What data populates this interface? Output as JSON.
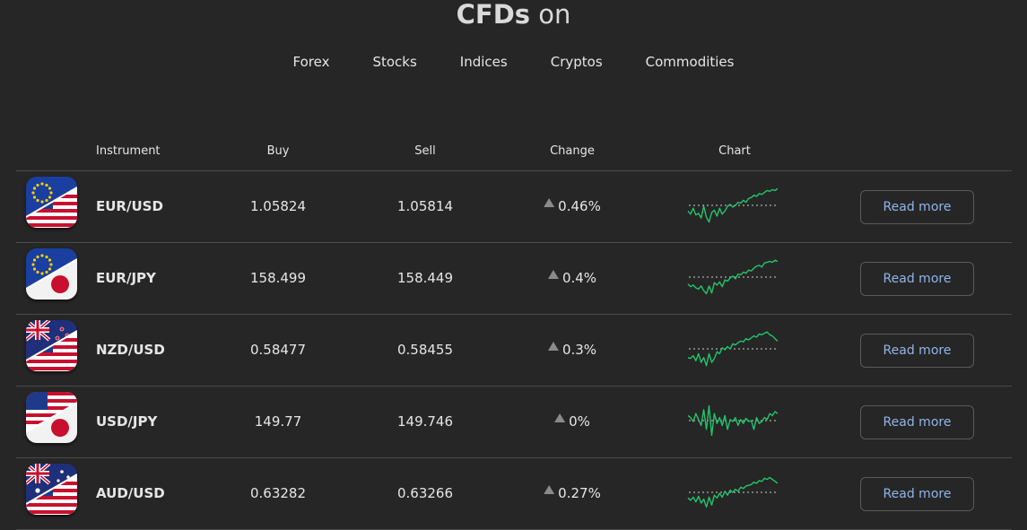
{
  "header": {
    "title_bold": "CFDs",
    "title_light": "on"
  },
  "tabs": [
    {
      "label": "Forex"
    },
    {
      "label": "Stocks"
    },
    {
      "label": "Indices"
    },
    {
      "label": "Cryptos"
    },
    {
      "label": "Commodities"
    }
  ],
  "table": {
    "columns": {
      "instrument": "Instrument",
      "buy": "Buy",
      "sell": "Sell",
      "change": "Change",
      "chart": "Chart"
    },
    "rows": [
      {
        "symbol": "EUR/USD",
        "buy": "1.05824",
        "sell": "1.05814",
        "change": "0.46%",
        "button": "Read more",
        "flag": "eu-us-flag-icon",
        "spark": [
          0.62,
          0.7,
          0.55,
          0.72,
          0.68,
          0.8,
          0.5,
          0.78,
          0.9,
          0.66,
          0.6,
          0.75,
          0.55,
          0.7,
          0.62,
          0.5,
          0.45,
          0.52,
          0.48,
          0.4,
          0.42,
          0.35,
          0.4,
          0.3,
          0.28,
          0.22,
          0.25,
          0.18,
          0.2,
          0.15,
          0.1,
          0.12,
          0.08,
          0.1,
          0.05
        ]
      },
      {
        "symbol": "EUR/JPY",
        "buy": "158.499",
        "sell": "158.449",
        "change": "0.4%",
        "button": "Read more",
        "flag": "eu-jp-flag-icon",
        "spark": [
          0.65,
          0.72,
          0.68,
          0.75,
          0.78,
          0.7,
          0.82,
          0.9,
          0.7,
          0.88,
          0.62,
          0.68,
          0.6,
          0.72,
          0.55,
          0.58,
          0.5,
          0.45,
          0.52,
          0.4,
          0.42,
          0.35,
          0.38,
          0.3,
          0.32,
          0.25,
          0.2,
          0.18,
          0.22,
          0.12,
          0.1,
          0.08,
          0.1,
          0.05,
          0.08
        ]
      },
      {
        "symbol": "NZD/USD",
        "buy": "0.58477",
        "sell": "0.58455",
        "change": "0.3%",
        "button": "Read more",
        "flag": "nz-us-flag-icon",
        "spark": [
          0.7,
          0.72,
          0.65,
          0.78,
          0.6,
          0.82,
          0.7,
          0.9,
          0.6,
          0.82,
          0.72,
          0.55,
          0.6,
          0.45,
          0.5,
          0.42,
          0.48,
          0.35,
          0.38,
          0.32,
          0.28,
          0.3,
          0.22,
          0.25,
          0.2,
          0.15,
          0.18,
          0.1,
          0.12,
          0.08,
          0.05,
          0.12,
          0.15,
          0.22,
          0.28
        ]
      },
      {
        "symbol": "USD/JPY",
        "buy": "149.77",
        "sell": "149.746",
        "change": "0%",
        "button": "Read more",
        "flag": "us-jp-flag-icon",
        "spark": [
          0.35,
          0.4,
          0.5,
          0.3,
          0.45,
          0.6,
          0.2,
          0.7,
          0.1,
          0.85,
          0.3,
          0.55,
          0.4,
          0.6,
          0.35,
          0.7,
          0.45,
          0.5,
          0.4,
          0.6,
          0.45,
          0.55,
          0.42,
          0.5,
          0.48,
          0.7,
          0.4,
          0.55,
          0.5,
          0.4,
          0.45,
          0.3,
          0.35,
          0.25,
          0.3
        ]
      },
      {
        "symbol": "AUD/USD",
        "buy": "0.63282",
        "sell": "0.63266",
        "change": "0.27%",
        "button": "Read more",
        "flag": "au-us-flag-icon",
        "spark": [
          0.62,
          0.68,
          0.6,
          0.72,
          0.58,
          0.75,
          0.65,
          0.85,
          0.6,
          0.8,
          0.55,
          0.62,
          0.5,
          0.6,
          0.45,
          0.55,
          0.42,
          0.48,
          0.4,
          0.45,
          0.35,
          0.38,
          0.32,
          0.3,
          0.28,
          0.22,
          0.25,
          0.18,
          0.2,
          0.12,
          0.15,
          0.1,
          0.15,
          0.2,
          0.25
        ]
      }
    ]
  },
  "colors": {
    "background": "#262626",
    "spark_line": "#22c46a",
    "button_text": "#8fb5e8",
    "divider": "#4a4a4a"
  }
}
